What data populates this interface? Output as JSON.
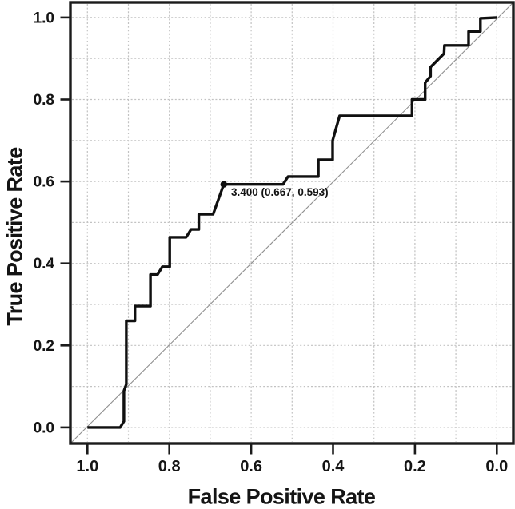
{
  "figure": {
    "background": "#ffffff",
    "frame_color": "#1b1b1b",
    "grid_color": "#c2c2c2",
    "diagonal_color": "#8f8f8f",
    "curve_color": "#101010",
    "tick_color": "#1b1b1b"
  },
  "chart_data": {
    "type": "line",
    "title": "",
    "xlabel": "False Positive Rate",
    "ylabel": "True Positive Rate",
    "x_axis_reversed": true,
    "xlim": [
      1.0,
      0.0
    ],
    "ylim": [
      0.0,
      1.0
    ],
    "grid": "dotted, every 0.1 on both axes",
    "grid_step": 0.1,
    "x_ticks": [
      "1.0",
      "0.8",
      "0.6",
      "0.4",
      "0.2",
      "0.0"
    ],
    "y_ticks": [
      "0.0",
      "0.2",
      "0.4",
      "0.6",
      "0.8",
      "1.0"
    ],
    "legend": "none",
    "series": [
      {
        "name": "roc-curve",
        "style": "step, thick black",
        "points": [
          [
            1.0,
            0.0
          ],
          [
            0.92,
            0.0
          ],
          [
            0.911,
            0.015
          ],
          [
            0.911,
            0.089
          ],
          [
            0.905,
            0.105
          ],
          [
            0.905,
            0.26
          ],
          [
            0.884,
            0.26
          ],
          [
            0.884,
            0.296
          ],
          [
            0.846,
            0.296
          ],
          [
            0.846,
            0.373
          ],
          [
            0.829,
            0.373
          ],
          [
            0.817,
            0.392
          ],
          [
            0.799,
            0.392
          ],
          [
            0.799,
            0.464
          ],
          [
            0.759,
            0.464
          ],
          [
            0.747,
            0.483
          ],
          [
            0.728,
            0.483
          ],
          [
            0.728,
            0.52
          ],
          [
            0.693,
            0.52
          ],
          [
            0.667,
            0.593
          ],
          [
            0.522,
            0.593
          ],
          [
            0.51,
            0.612
          ],
          [
            0.436,
            0.612
          ],
          [
            0.436,
            0.653
          ],
          [
            0.401,
            0.653
          ],
          [
            0.401,
            0.7
          ],
          [
            0.384,
            0.76
          ],
          [
            0.207,
            0.76
          ],
          [
            0.207,
            0.8
          ],
          [
            0.175,
            0.8
          ],
          [
            0.175,
            0.841
          ],
          [
            0.162,
            0.857
          ],
          [
            0.162,
            0.879
          ],
          [
            0.129,
            0.912
          ],
          [
            0.128,
            0.932
          ],
          [
            0.069,
            0.932
          ],
          [
            0.069,
            0.966
          ],
          [
            0.04,
            0.966
          ],
          [
            0.04,
            0.998
          ],
          [
            0.0,
            1.0
          ]
        ]
      },
      {
        "name": "reference-diagonal",
        "style": "thin gray line",
        "points": [
          [
            1.0,
            0.0
          ],
          [
            0.0,
            1.0
          ]
        ]
      }
    ],
    "marked_point": {
      "threshold": "3.400",
      "fpr": 0.667,
      "tpr": 0.593,
      "label": "3.400 (0.667, 0.593)"
    }
  }
}
